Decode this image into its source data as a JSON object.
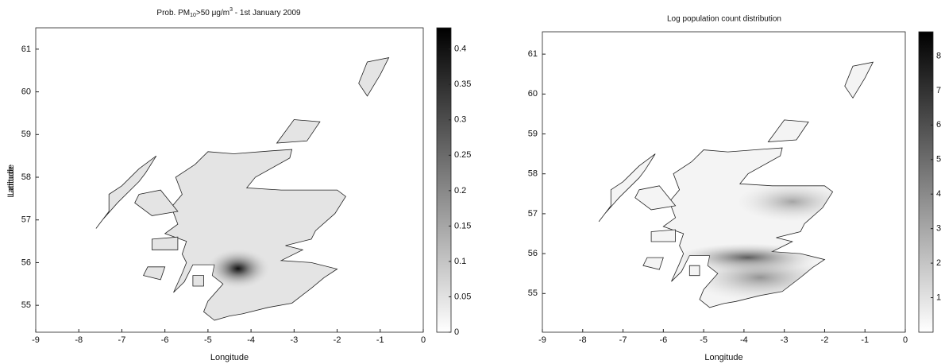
{
  "chart_data": [
    {
      "type": "map",
      "title": [
        "Prob. PM",
        "10",
        ">50 μg/m",
        "3",
        " - 1st January 2009"
      ],
      "xlabel": "Longitude",
      "ylabel": "Latitude",
      "xlim": [
        -9,
        0
      ],
      "ylim": [
        54.37,
        61.5
      ],
      "xticks": [
        -9,
        -8,
        -7,
        -6,
        -5,
        -4,
        -3,
        -2,
        -1,
        0
      ],
      "yticks": [
        55,
        56,
        57,
        58,
        59,
        60,
        61
      ],
      "colorbar": {
        "lim": [
          0,
          0.43
        ],
        "ticks": [
          0,
          0.05,
          0.1,
          0.15,
          0.2,
          0.25,
          0.3,
          0.35,
          0.4
        ]
      }
    },
    {
      "type": "map",
      "title": "Log population count distribution",
      "xlabel": "Longitude",
      "ylabel": "Latitude",
      "xlim": [
        -9,
        0
      ],
      "ylim": [
        54.03,
        61.56
      ],
      "xticks": [
        -9,
        -8,
        -7,
        -6,
        -5,
        -4,
        -3,
        -2,
        -1,
        0
      ],
      "yticks": [
        55,
        56,
        57,
        58,
        59,
        60,
        61
      ],
      "colorbar": {
        "lim": [
          0,
          8.7
        ],
        "ticks": [
          1,
          2,
          3,
          4,
          5,
          6,
          7,
          8
        ]
      }
    }
  ]
}
